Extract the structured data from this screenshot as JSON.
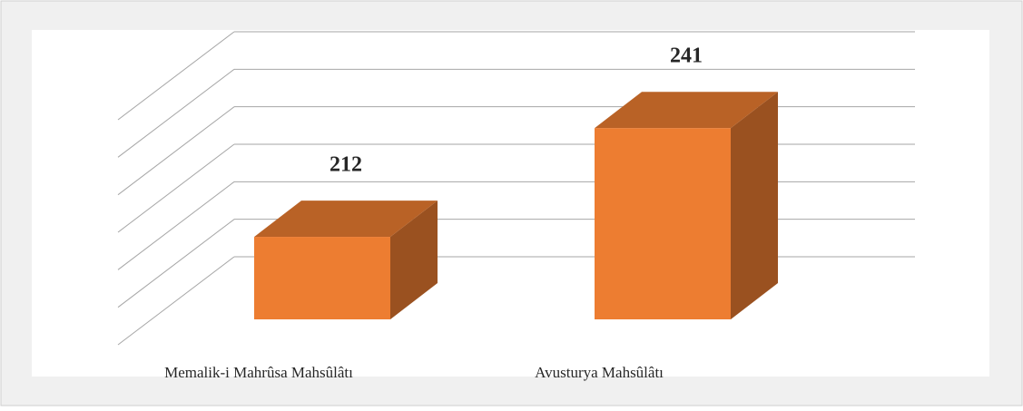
{
  "chart_data": {
    "type": "bar3d",
    "categories": [
      "Memalik-i Mahrûsa Mahsûlâtı",
      "Avusturya Mahsûlâtı"
    ],
    "values": [
      212,
      241
    ],
    "color": "#ed7d31",
    "ylim": [
      190,
      250
    ],
    "yticks": [
      190,
      200,
      210,
      220,
      230,
      240,
      250
    ],
    "grid": true
  }
}
